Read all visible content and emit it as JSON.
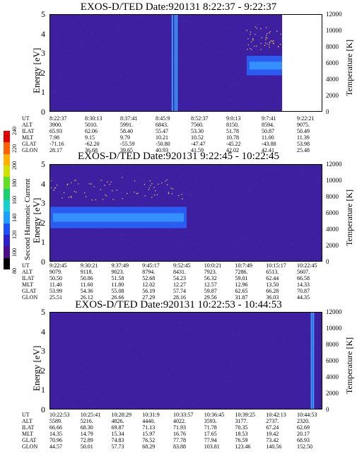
{
  "colors": {
    "background": "#3d1fa0",
    "band": "#2a5cf2",
    "band_core": "#39a0ff",
    "dots": "#d9b06a",
    "scale": [
      "#000000",
      "#4b0f8c",
      "#2c1fd0",
      "#1e50ff",
      "#1aa0ff",
      "#18d0d0",
      "#18d070",
      "#60e020",
      "#d0e000",
      "#ffb000",
      "#ff6000",
      "#e00000"
    ]
  },
  "chart_data": [
    {
      "type": "heatmap",
      "title": "EXOS-D/TED   Date:920131   8:22:37 - 9:22:37",
      "ylabel": "Energy [eV]",
      "ylim": [
        0,
        5
      ],
      "yticks": [
        "0",
        "1",
        "2",
        "3",
        "4",
        "5"
      ],
      "right_axis": {
        "label": "Temperature [K]",
        "ylim": [
          0,
          12000
        ],
        "ticks": [
          "0",
          "2000",
          "4000",
          "6000",
          "8000",
          "10000",
          "12000"
        ]
      },
      "band": {
        "center_ev": 2.4,
        "halfwidth_ev": 0.5,
        "start_frac": 0.72,
        "end_frac": 0.92
      },
      "vertical_streaks": [
        0.445,
        0.455,
        0.462
      ],
      "table": [
        {
          "label": "UT",
          "values": [
            "8:22:37",
            "8:30:13",
            "8:37:41",
            "8:45:9",
            "8:52:37",
            "9:0:13",
            "9:7:41",
            "9:22:21"
          ]
        },
        {
          "label": "ALT",
          "values": [
            "3900.",
            "5010.",
            "5991.",
            "6843.",
            "7560.",
            "8150.",
            "8594.",
            "9075."
          ]
        },
        {
          "label": "ILAT",
          "values": [
            "65.93",
            "62.06",
            "58.40",
            "55.47",
            "53.30",
            "51.78",
            "50.87",
            "50.49"
          ]
        },
        {
          "label": "MLT",
          "values": [
            "7.98",
            "9.15",
            "9.79",
            "10.21",
            "10.52",
            "10.78",
            "11.00",
            "11.39"
          ]
        },
        {
          "label": "GLAT",
          "values": [
            "-71.16",
            "-62.20",
            "-55.59",
            "-50.80",
            "-47.47",
            "-45.22",
            "-43.88",
            "53.98"
          ]
        },
        {
          "label": "GLON",
          "values": [
            "28.17",
            "36.68",
            "39.65",
            "40.93",
            "41.59",
            "42.02",
            "42.41",
            "25.48"
          ]
        }
      ]
    },
    {
      "type": "heatmap",
      "title": "EXOS-D/TED   Date:920131   9:22:45 - 10:22:45",
      "ylabel": "Energy [eV]",
      "ylim": [
        0,
        5
      ],
      "yticks": [
        "0",
        "1",
        "2",
        "3",
        "4",
        "5"
      ],
      "right_axis": {
        "label": "Temperature [K]",
        "ylim": [
          0,
          12000
        ],
        "ticks": [
          "0",
          "2000",
          "4000",
          "6000",
          "8000",
          "10000",
          "12000"
        ]
      },
      "band": {
        "center_ev": 2.3,
        "halfwidth_ev": 0.55,
        "start_frac": 0.0,
        "end_frac": 0.5
      },
      "vertical_streaks": [],
      "table": [
        {
          "label": "UT",
          "values": [
            "9:22:45",
            "9:30:21",
            "9:37:49",
            "9:45:17",
            "9:52:45",
            "10:0:21",
            "10:7:49",
            "10:15:17",
            "10:22:45"
          ]
        },
        {
          "label": "ALT",
          "values": [
            "9079.",
            "9118.",
            "9023.",
            "8794.",
            "8431.",
            "7923.",
            "7286.",
            "6513.",
            "5607."
          ]
        },
        {
          "label": "ILAT",
          "values": [
            "50.50",
            "50.86",
            "51.58",
            "52.68",
            "54.23",
            "56.32",
            "59.01",
            "62.44",
            "66.58"
          ]
        },
        {
          "label": "MLT",
          "values": [
            "11.40",
            "11.60",
            "11.80",
            "12.02",
            "12.27",
            "12.57",
            "12.96",
            "13.50",
            "14.33"
          ]
        },
        {
          "label": "GLAT",
          "values": [
            "53.99",
            "54.36",
            "55.08",
            "56.19",
            "57.74",
            "59.87",
            "62.65",
            "66.28",
            "70.87"
          ]
        },
        {
          "label": "GLON",
          "values": [
            "25.51",
            "26.12",
            "26.66",
            "27.29",
            "28.16",
            "29.56",
            "31.87",
            "36.03",
            "44.35"
          ]
        }
      ]
    },
    {
      "type": "heatmap",
      "title": "EXOS-D/TED   Date:920131   10:22:53 - 10:44:53",
      "ylabel": "Energy [eV]",
      "ylim": [
        0,
        5
      ],
      "yticks": [
        "0",
        "1",
        "2",
        "3",
        "4",
        "5"
      ],
      "right_axis": {
        "label": "Temperature [K]",
        "ylim": [
          0,
          12000
        ],
        "ticks": [
          "0",
          "2000",
          "4000",
          "6000",
          "8000",
          "10000",
          "12000"
        ]
      },
      "band": null,
      "vertical_streaks": [
        0.955,
        0.962
      ],
      "table": [
        {
          "label": "UT",
          "values": [
            "10:22:53",
            "10:25:41",
            "10:28:29",
            "10:31:9",
            "10:33:57",
            "10:36:45",
            "10:39:25",
            "10:42:13",
            "10:44:53"
          ]
        },
        {
          "label": "ALT",
          "values": [
            "5589.",
            "5216.",
            "4826.",
            "4440.",
            "4022.",
            "3593.",
            "3177.",
            "2737.",
            "2320."
          ]
        },
        {
          "label": "ILAT",
          "values": [
            "66.66",
            "68.30",
            "69.87",
            "71.13",
            "71.93",
            "71.78",
            "70.35",
            "67.24",
            "62.69"
          ]
        },
        {
          "label": "MLT",
          "values": [
            "14.35",
            "14.79",
            "15.34",
            "15.97",
            "16.76",
            "17.65",
            "18.53",
            "19.42",
            "20.17"
          ]
        },
        {
          "label": "GLAT",
          "values": [
            "70.96",
            "72.89",
            "74.83",
            "76.52",
            "77.78",
            "77.94",
            "76.59",
            "73.42",
            "68.93"
          ]
        },
        {
          "label": "GLON",
          "values": [
            "44.57",
            "50.01",
            "57.73",
            "68.29",
            "83.88",
            "103.81",
            "123.46",
            "140.56",
            "152.50"
          ]
        }
      ]
    }
  ],
  "colorbar": {
    "label": "Second Harmonic Current",
    "ticks": [
      "80",
      "100",
      "120",
      "140",
      "160",
      "180",
      "200",
      "220",
      "240"
    ]
  }
}
